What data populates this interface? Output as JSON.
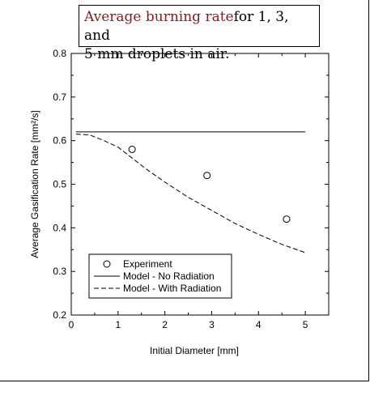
{
  "chart_data": {
    "type": "line",
    "title_lead": "Average burning rate",
    "title_rest_1": "for 1, 3, and",
    "title_rest_2": "5 mm droplets in air.",
    "xlabel": "Initial Diameter [mm]",
    "ylabel": "Average Gasification Rate [mm²/s]",
    "xlim": [
      0,
      5.5
    ],
    "ylim": [
      0.2,
      0.8
    ],
    "xticks": [
      "0",
      "1",
      "2",
      "3",
      "4",
      "5"
    ],
    "yticks": [
      "0.2",
      "0.3",
      "0.4",
      "0.5",
      "0.6",
      "0.7",
      "0.8"
    ],
    "grid": false,
    "legend_position": "bottom-left",
    "series": [
      {
        "name": "Experiment",
        "style": "markers-open-circle",
        "x": [
          1.3,
          2.9,
          4.6
        ],
        "y": [
          0.58,
          0.52,
          0.42
        ]
      },
      {
        "name": "Model - No Radiation",
        "style": "solid",
        "x": [
          0.1,
          5.0
        ],
        "y": [
          0.62,
          0.62
        ]
      },
      {
        "name": "Model - With Radiation",
        "style": "dashed",
        "x": [
          0.1,
          0.4,
          0.7,
          1.0,
          1.3,
          1.6,
          2.0,
          2.5,
          3.0,
          3.5,
          4.0,
          4.5,
          5.0
        ],
        "y": [
          0.615,
          0.613,
          0.6,
          0.585,
          0.56,
          0.535,
          0.505,
          0.47,
          0.44,
          0.41,
          0.385,
          0.362,
          0.343
        ]
      }
    ]
  }
}
